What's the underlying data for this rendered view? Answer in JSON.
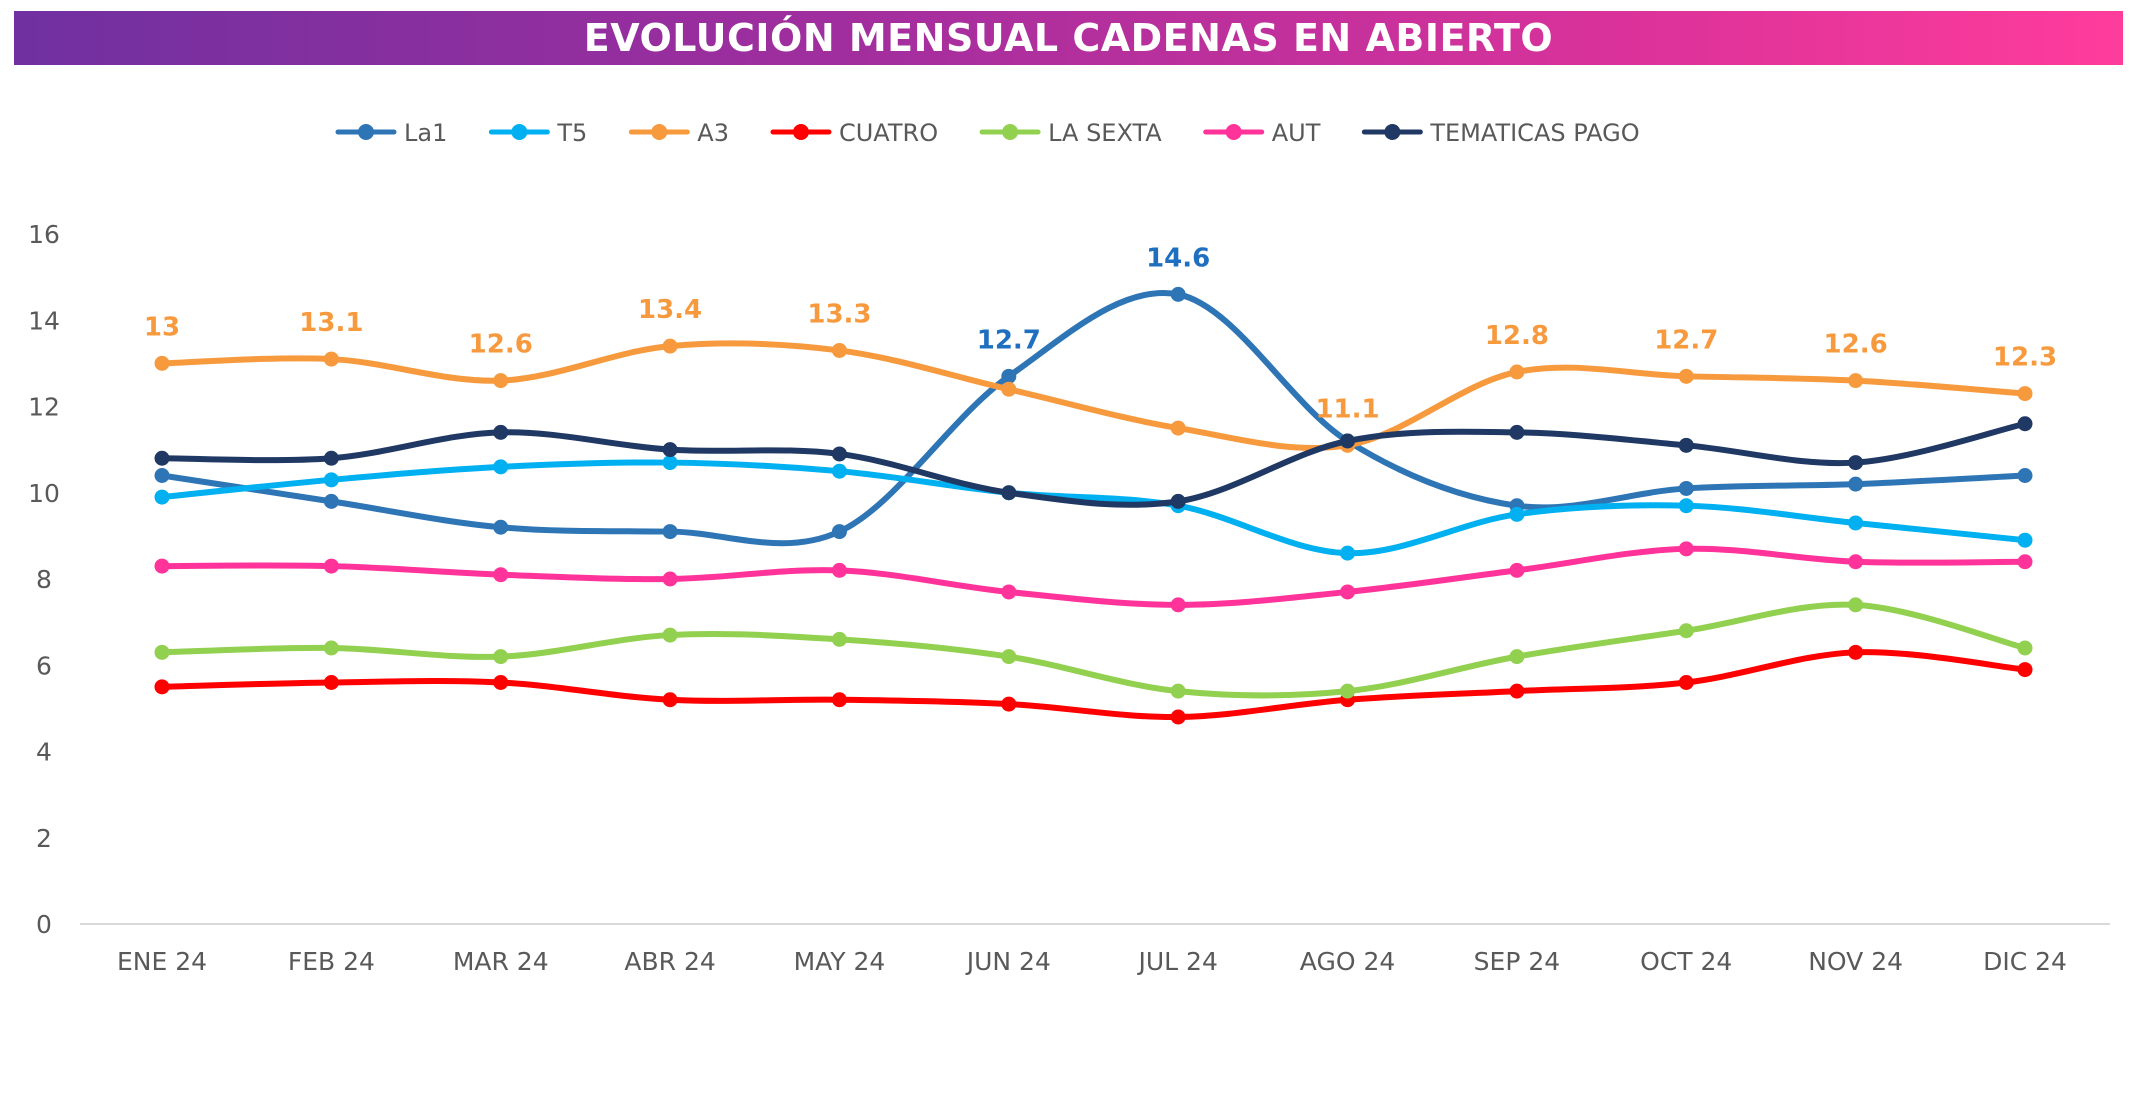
{
  "title": "EVOLUCIÓN MENSUAL CADENAS EN ABIERTO",
  "chart_data": {
    "type": "line",
    "title": "EVOLUCIÓN MENSUAL CADENAS EN ABIERTO",
    "xlabel": "",
    "ylabel": "",
    "ylim": [
      0,
      16
    ],
    "yticks": [
      0,
      2,
      4,
      6,
      8,
      10,
      12,
      14,
      16
    ],
    "grid": false,
    "smooth": true,
    "legend_position": "top",
    "categories": [
      "ENE 24",
      "FEB 24",
      "MAR 24",
      "ABR 24",
      "MAY 24",
      "JUN 24",
      "JUL 24",
      "AGO 24",
      "SEP 24",
      "OCT 24",
      "NOV 24",
      "DIC 24"
    ],
    "series": [
      {
        "name": "La1",
        "color": "#2E75B6",
        "label_color": "#1F6FC0",
        "values": [
          10.4,
          9.8,
          9.2,
          9.1,
          9.1,
          12.7,
          14.6,
          11.2,
          9.7,
          10.1,
          10.2,
          10.4
        ],
        "labels": [
          null,
          null,
          null,
          null,
          null,
          "12.7",
          "14.6",
          null,
          null,
          null,
          null,
          null
        ]
      },
      {
        "name": "T5",
        "color": "#00B0F0",
        "values": [
          9.9,
          10.3,
          10.6,
          10.7,
          10.5,
          10.0,
          9.7,
          8.6,
          9.5,
          9.7,
          9.3,
          8.9
        ]
      },
      {
        "name": "A3",
        "color": "#F79A3E",
        "label_color": "#F79A3E",
        "values": [
          13.0,
          13.1,
          12.6,
          13.4,
          13.3,
          12.4,
          11.5,
          11.1,
          12.8,
          12.7,
          12.6,
          12.3
        ],
        "labels": [
          "13",
          "13.1",
          "12.6",
          "13.4",
          "13.3",
          null,
          null,
          "11.1",
          "12.8",
          "12.7",
          "12.6",
          "12.3"
        ]
      },
      {
        "name": "CUATRO",
        "color": "#FF0000",
        "values": [
          5.5,
          5.6,
          5.6,
          5.2,
          5.2,
          5.1,
          4.8,
          5.2,
          5.4,
          5.6,
          6.3,
          5.9
        ]
      },
      {
        "name": "LA SEXTA",
        "color": "#92D050",
        "values": [
          6.3,
          6.4,
          6.2,
          6.7,
          6.6,
          6.2,
          5.4,
          5.4,
          6.2,
          6.8,
          7.4,
          6.4
        ]
      },
      {
        "name": "AUT",
        "color": "#FF3399",
        "values": [
          8.3,
          8.3,
          8.1,
          8.0,
          8.2,
          7.7,
          7.4,
          7.7,
          8.2,
          8.7,
          8.4,
          8.4
        ]
      },
      {
        "name": "TEMATICAS PAGO",
        "color": "#1F3864",
        "values": [
          10.8,
          10.8,
          11.4,
          11.0,
          10.9,
          10.0,
          9.8,
          11.2,
          11.4,
          11.1,
          10.7,
          11.6
        ]
      }
    ]
  }
}
